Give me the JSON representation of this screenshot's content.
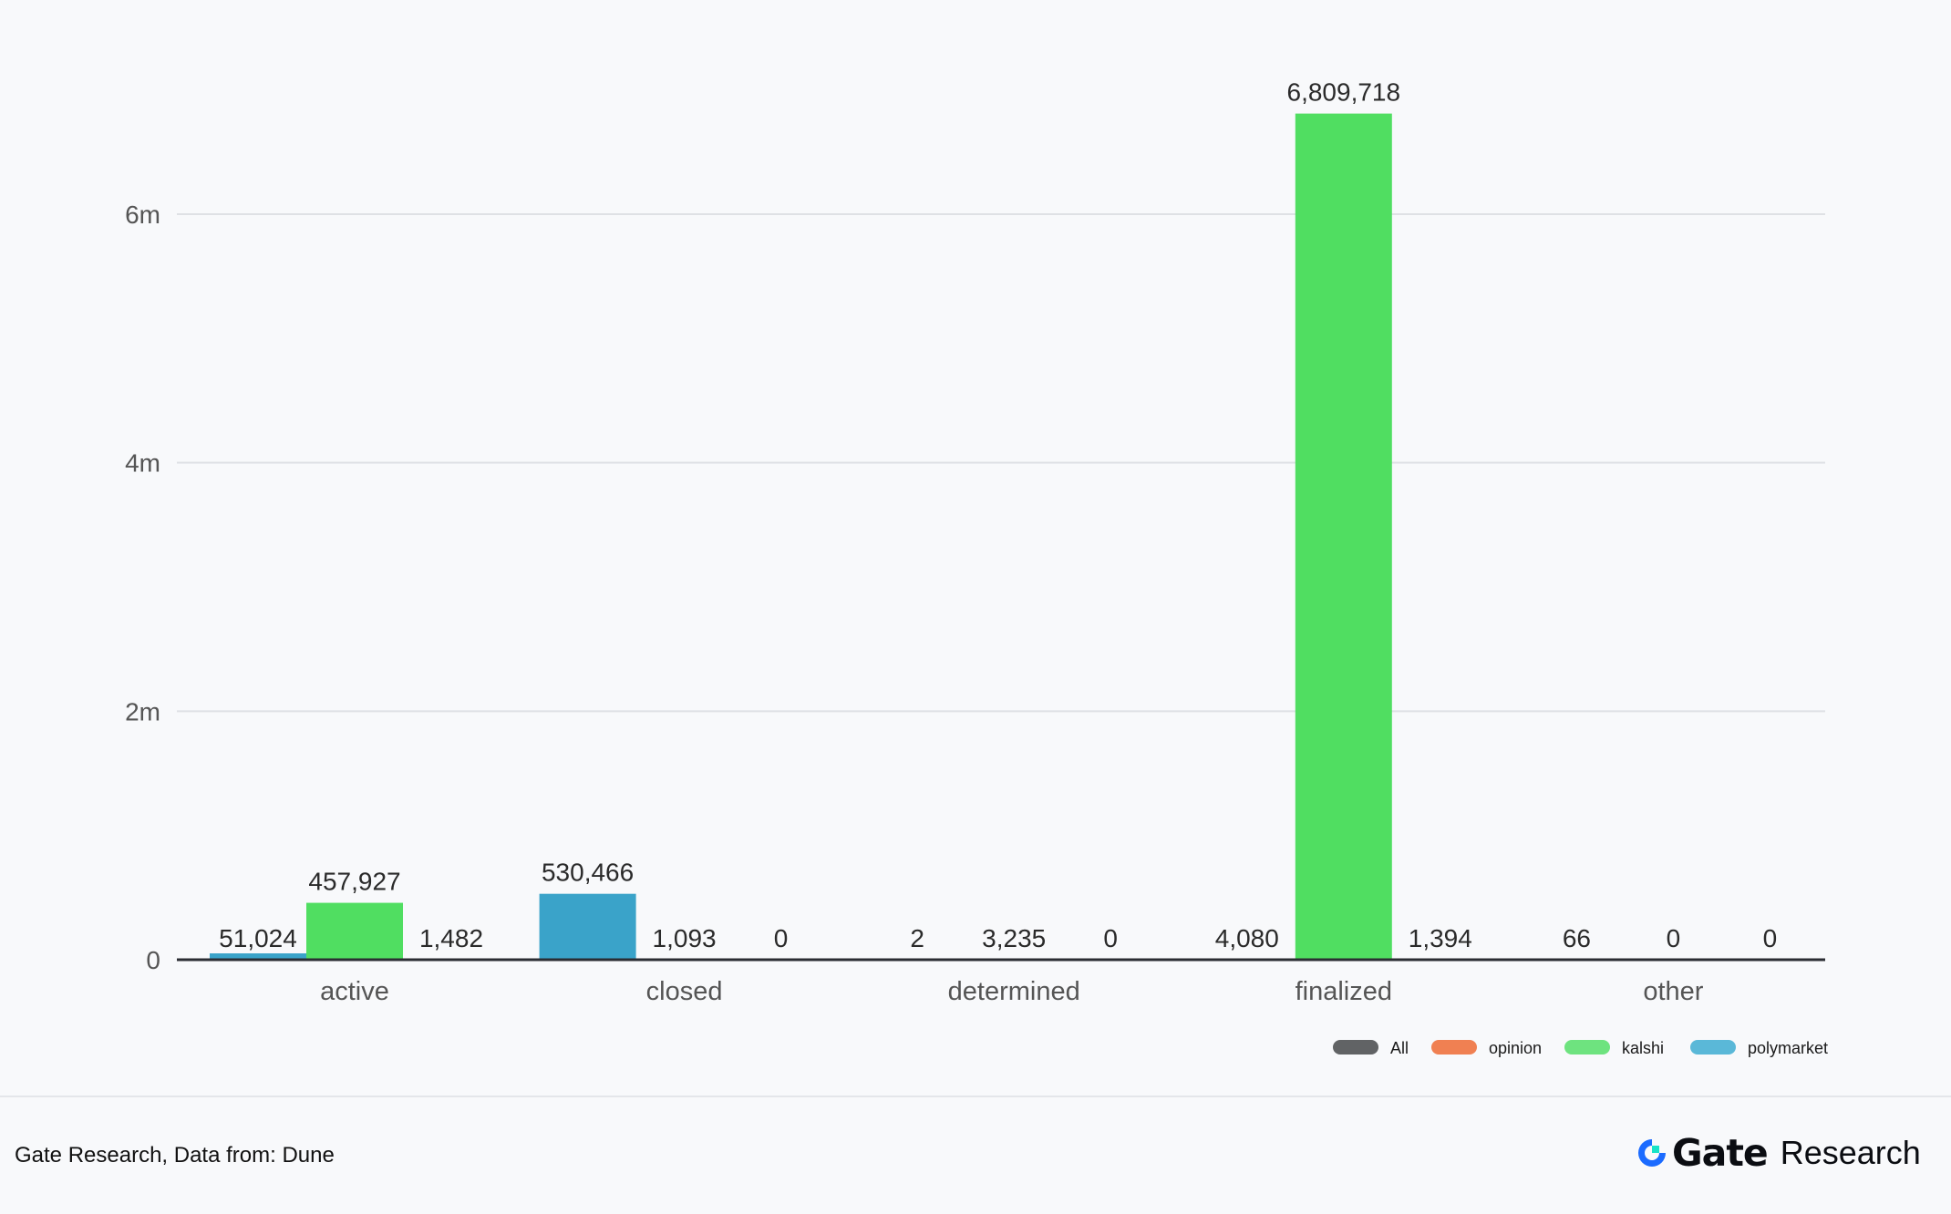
{
  "chart_data": {
    "type": "bar",
    "categories": [
      "active",
      "closed",
      "determined",
      "finalized",
      "other"
    ],
    "series": [
      {
        "name": "polymarket",
        "color": "#3aa3c9",
        "values": [
          51024,
          530466,
          2,
          4080,
          66
        ]
      },
      {
        "name": "kalshi",
        "color": "#50de61",
        "values": [
          457927,
          1093,
          3235,
          6809718,
          0
        ]
      },
      {
        "name": "opinion",
        "color": "#f08052",
        "values": [
          1482,
          0,
          0,
          1394,
          0
        ]
      }
    ],
    "data_labels": [
      [
        "51,024",
        "457,927",
        "1,482"
      ],
      [
        "530,466",
        "1,093",
        "0"
      ],
      [
        "2",
        "3,235",
        "0"
      ],
      [
        "4,080",
        "6,809,718",
        "1,394"
      ],
      [
        "66",
        "0",
        "0"
      ]
    ],
    "legend": [
      {
        "name": "All",
        "color": "#616365"
      },
      {
        "name": "opinion",
        "color": "#f08052"
      },
      {
        "name": "kalshi",
        "color": "#6ee37f"
      },
      {
        "name": "polymarket",
        "color": "#5ab8d8"
      }
    ],
    "legend_position": "bottom-right",
    "y_ticks": [
      {
        "value": 0,
        "label": "0"
      },
      {
        "value": 2000000,
        "label": "2m"
      },
      {
        "value": 4000000,
        "label": "4m"
      },
      {
        "value": 6000000,
        "label": "6m"
      }
    ],
    "ylim": [
      0,
      7200000
    ],
    "grid": true,
    "title": "",
    "xlabel": "",
    "ylabel": ""
  },
  "footer": {
    "source": "Gate Research, Data from: Dune",
    "brand_name": "Gate",
    "brand_sub": "Research",
    "brand_icon": "gate-logo-icon"
  }
}
